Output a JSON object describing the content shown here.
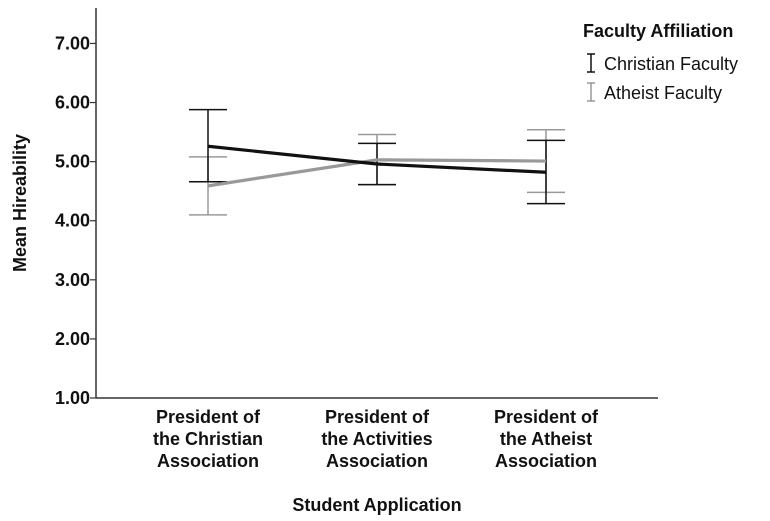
{
  "chart_data": {
    "type": "line",
    "xlabel": "Student Application",
    "ylabel": "Mean Hireability",
    "ylim": [
      1.0,
      7.6
    ],
    "yticks": [
      "1.00",
      "2.00",
      "3.00",
      "4.00",
      "5.00",
      "6.00",
      "7.00"
    ],
    "ytick_values": [
      1,
      2,
      3,
      4,
      5,
      6,
      7
    ],
    "categories": [
      [
        "President of",
        "the Christian",
        "Association"
      ],
      [
        "President of",
        "the Activities",
        "Association"
      ],
      [
        "President of",
        "the Atheist",
        "Association"
      ]
    ],
    "grid": false,
    "legend": {
      "title": "Faculty Affiliation",
      "placement": "top-right"
    },
    "series": [
      {
        "name": "Christian Faculty",
        "color": "#111111",
        "values": [
          5.26,
          4.96,
          4.82
        ],
        "ci_lower": [
          4.66,
          4.61,
          4.29
        ],
        "ci_upper": [
          5.88,
          5.31,
          5.36
        ]
      },
      {
        "name": "Atheist Faculty",
        "color": "#999999",
        "values": [
          4.59,
          5.03,
          5.01
        ],
        "ci_lower": [
          4.1,
          4.61,
          4.48
        ],
        "ci_upper": [
          5.08,
          5.46,
          5.54
        ]
      }
    ]
  }
}
